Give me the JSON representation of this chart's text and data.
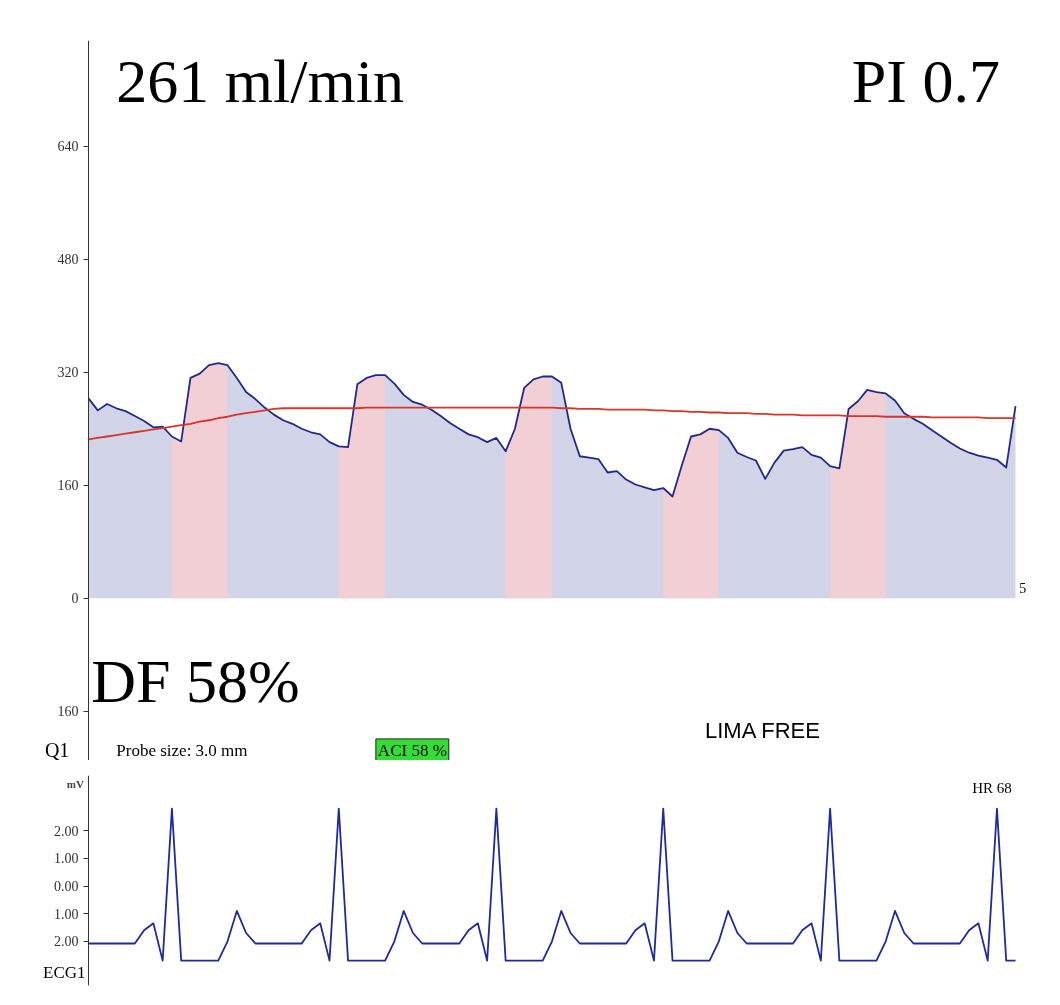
{
  "chart_data": [
    {
      "type": "area",
      "categories": [
        null,
        null,
        null,
        null,
        null,
        null,
        null,
        null,
        null,
        null,
        null,
        null,
        null,
        null,
        null,
        null,
        null,
        null,
        null,
        null,
        null,
        null,
        null,
        null,
        null,
        null,
        null,
        null,
        null,
        null,
        null,
        null,
        null,
        null,
        null,
        null,
        null,
        null,
        null,
        null,
        null,
        null,
        null,
        null,
        null,
        null,
        null,
        null,
        null,
        null,
        null,
        null,
        null,
        null,
        null,
        null,
        null,
        null,
        null,
        null,
        null,
        null,
        null,
        null,
        null,
        null,
        null,
        null,
        null,
        null,
        null,
        null,
        null,
        null,
        null,
        null,
        null,
        null,
        null,
        null,
        null,
        null,
        null,
        null,
        null,
        null,
        null,
        null,
        null,
        null,
        null,
        null,
        null,
        null,
        null,
        null,
        null,
        null,
        null,
        null,
        null
      ],
      "ylim": [
        -230,
        790
      ],
      "yticks": [
        {
          "value": -160,
          "label": "160"
        },
        0,
        160,
        320,
        480,
        640
      ],
      "tick_labels": "y",
      "grid": false,
      "series": [
        {
          "type": "area",
          "color": "#1f2a8c",
          "values": [
            283,
            266,
            275,
            269,
            265,
            258,
            251,
            242,
            243,
            229,
            222,
            312,
            318,
            330,
            333,
            330,
            312,
            292,
            282,
            270,
            260,
            252,
            247,
            240,
            235,
            232,
            221,
            215,
            214,
            303,
            312,
            316,
            316,
            304,
            288,
            278,
            274,
            267,
            258,
            248,
            240,
            232,
            228,
            221,
            227,
            208,
            240,
            298,
            310,
            314,
            314,
            305,
            240,
            201,
            199,
            197,
            178,
            180,
            168,
            161,
            157,
            153,
            156,
            144,
            188,
            229,
            232,
            240,
            238,
            227,
            206,
            200,
            195,
            169,
            192,
            209,
            211,
            214,
            203,
            199,
            187,
            184,
            268,
            279,
            295,
            292,
            290,
            280,
            262,
            254,
            247,
            238,
            229,
            220,
            212,
            206,
            202,
            199,
            196,
            185,
            272
          ]
        },
        {
          "type": "area",
          "color": "#f2cfd4",
          "values": [
            null,
            null,
            null,
            null,
            null,
            null,
            null,
            null,
            null,
            229,
            222,
            312,
            318,
            330,
            333,
            330,
            null,
            null,
            null,
            null,
            null,
            null,
            null,
            null,
            null,
            null,
            null,
            215,
            214,
            303,
            312,
            316,
            316,
            null,
            null,
            null,
            null,
            null,
            null,
            null,
            null,
            null,
            null,
            null,
            null,
            208,
            240,
            298,
            310,
            314,
            314,
            null,
            null,
            null,
            null,
            null,
            null,
            null,
            null,
            null,
            null,
            null,
            156,
            144,
            188,
            229,
            232,
            240,
            238,
            null,
            null,
            null,
            null,
            null,
            null,
            null,
            null,
            null,
            null,
            null,
            187,
            184,
            268,
            279,
            295,
            292,
            290,
            null,
            null,
            null,
            null,
            null,
            null,
            null,
            null,
            null,
            null,
            null,
            null,
            null,
            null
          ]
        },
        {
          "type": "line",
          "color": "#d9362b",
          "values": [
            225,
            227,
            229,
            231,
            233,
            235,
            237,
            239,
            241,
            243,
            245,
            247,
            250,
            252,
            255,
            257,
            260,
            262,
            264,
            266,
            268,
            269,
            269,
            269,
            269,
            269,
            269,
            269,
            269,
            269,
            270,
            270,
            270,
            270,
            270,
            270,
            270,
            270,
            270,
            270,
            270,
            270,
            270,
            270,
            270,
            270,
            270,
            270,
            270,
            270,
            270,
            269,
            269,
            268,
            268,
            268,
            267,
            267,
            267,
            267,
            267,
            266,
            266,
            265,
            265,
            264,
            264,
            263,
            263,
            262,
            262,
            262,
            261,
            261,
            260,
            260,
            260,
            259,
            259,
            259,
            259,
            259,
            258,
            258,
            258,
            258,
            257,
            257,
            257,
            257,
            257,
            256,
            256,
            256,
            256,
            256,
            256,
            255,
            255,
            255,
            255
          ]
        }
      ],
      "annotations": [
        "261 ml/min",
        "PI  0.7",
        "DF  58%",
        "LIMA FREE",
        "Q1",
        "Probe size: 3.0 mm",
        "ACI 58 %",
        "5"
      ]
    },
    {
      "type": "line",
      "categories": [
        null,
        null,
        null,
        null,
        null,
        null,
        null,
        null,
        null,
        null,
        null,
        null,
        null,
        null,
        null,
        null,
        null,
        null,
        null,
        null,
        null,
        null,
        null,
        null,
        null,
        null,
        null,
        null,
        null,
        null,
        null,
        null,
        null,
        null,
        null,
        null,
        null,
        null,
        null,
        null,
        null,
        null,
        null,
        null,
        null,
        null,
        null,
        null,
        null,
        null,
        null,
        null,
        null,
        null,
        null,
        null,
        null,
        null,
        null,
        null,
        null,
        null,
        null,
        null,
        null,
        null,
        null,
        null,
        null,
        null,
        null,
        null,
        null,
        null,
        null,
        null,
        null,
        null,
        null,
        null,
        null,
        null,
        null,
        null,
        null,
        null,
        null,
        null,
        null,
        null,
        null,
        null,
        null,
        null,
        null,
        null,
        null,
        null,
        null,
        null,
        null
      ],
      "ylim": [
        -3.6,
        4.0
      ],
      "tick_labels": "y",
      "grid": false,
      "ylabel": "mV",
      "yticks": [
        {
          "value": -2,
          "label": "2.00"
        },
        {
          "value": -1,
          "label": "1.00"
        },
        {
          "value": 0,
          "label": "0.00"
        },
        {
          "value": 1,
          "label": "1.00"
        },
        {
          "value": 2,
          "label": "2.00"
        }
      ],
      "series": [
        {
          "color": "#1f2a9c",
          "values": [
            -2.08,
            -2.08,
            -2.08,
            -2.08,
            -2.08,
            -2.08,
            -1.6,
            -1.35,
            -2.7,
            2.8,
            -2.7,
            -2.7,
            -2.7,
            -2.7,
            -2.7,
            -2.0,
            -0.9,
            -1.7,
            -2.08,
            -2.08,
            -2.08,
            -2.08,
            -2.08,
            -2.08,
            -1.6,
            -1.35,
            -2.7,
            2.8,
            -2.7,
            -2.7,
            -2.7,
            -2.7,
            -2.7,
            -2.0,
            -0.9,
            -1.7,
            -2.08,
            -2.08,
            -2.08,
            -2.08,
            -2.08,
            -1.6,
            -1.35,
            -2.7,
            2.8,
            -2.7,
            -2.7,
            -2.7,
            -2.7,
            -2.7,
            -2.0,
            -0.9,
            -1.7,
            -2.08,
            -2.08,
            -2.08,
            -2.08,
            -2.08,
            -2.08,
            -1.6,
            -1.35,
            -2.7,
            2.8,
            -2.7,
            -2.7,
            -2.7,
            -2.7,
            -2.7,
            -2.0,
            -0.9,
            -1.7,
            -2.08,
            -2.08,
            -2.08,
            -2.08,
            -2.08,
            -2.08,
            -1.6,
            -1.35,
            -2.7,
            2.8,
            -2.7,
            -2.7,
            -2.7,
            -2.7,
            -2.7,
            -2.0,
            -0.9,
            -1.7,
            -2.08,
            -2.08,
            -2.08,
            -2.08,
            -2.08,
            -2.08,
            -1.6,
            -1.35,
            -2.7,
            2.8,
            -2.7,
            -2.7
          ]
        }
      ],
      "annotations": [
        "HR  68",
        "ECG1"
      ]
    }
  ]
}
